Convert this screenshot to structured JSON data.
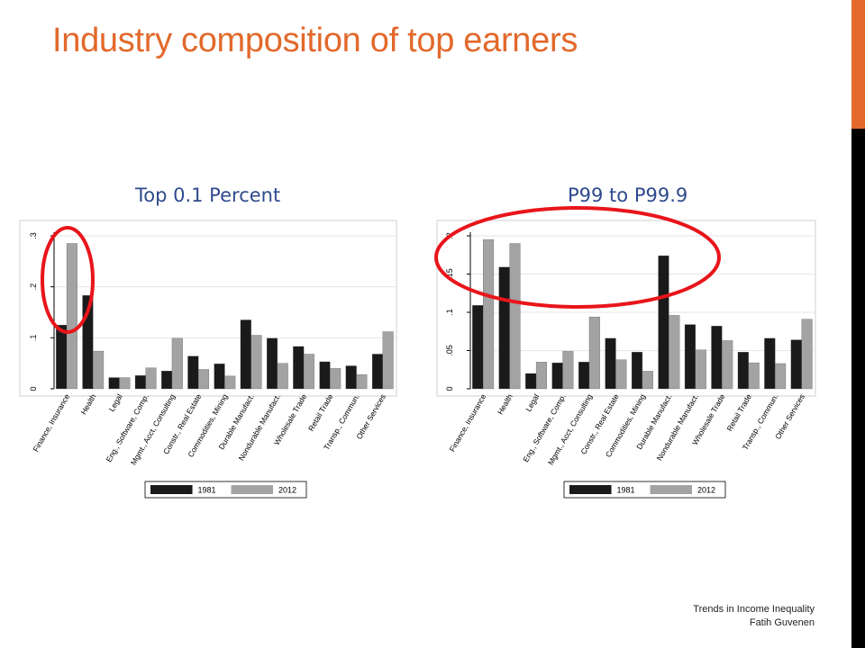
{
  "slide": {
    "title": "Industry composition of top earners",
    "footer_line1": "Trends in Income Inequality",
    "footer_line2": "Fatih Guvenen"
  },
  "colors": {
    "title": "#E2692B",
    "panel_title": "#2E4A8C",
    "accent_bar": "#E2692B",
    "dark_bar": "#000000",
    "series_1981": "#1a1a1a",
    "series_2012": "#a3a3a3",
    "highlight_circle": "#E8151B",
    "plot_bg": "#ffffff",
    "grid": "#e6e6e6"
  },
  "chart_data": [
    {
      "type": "bar",
      "title": "Top 0.1 Percent",
      "categories": [
        "Finance, Insurance",
        "Health",
        "Legal",
        "Eng., Software, Comp.",
        "Mgmt., Acct, Consulting",
        "Constr., Real Estate",
        "Commodities, Mining",
        "Durable Manufact.",
        "Nondurable Manufact.",
        "Wholesale Trade",
        "Retail Trade",
        "Transp., Commun.",
        "Other Services"
      ],
      "series": [
        {
          "name": "1981",
          "values": [
            0.125,
            0.183,
            0.022,
            0.026,
            0.035,
            0.064,
            0.049,
            0.135,
            0.099,
            0.083,
            0.053,
            0.045,
            0.068
          ]
        },
        {
          "name": "2012",
          "values": [
            0.285,
            0.074,
            0.022,
            0.041,
            0.099,
            0.038,
            0.025,
            0.105,
            0.05,
            0.068,
            0.04,
            0.028,
            0.112
          ]
        }
      ],
      "ylim": [
        0,
        0.3
      ],
      "yticks": [
        0,
        0.1,
        0.2,
        0.3
      ],
      "ytick_labels": [
        "0",
        ".1",
        ".2",
        ".3"
      ],
      "grid": true,
      "legend_position": "bottom",
      "highlight": {
        "shape": "ellipse",
        "category_index": 0
      }
    },
    {
      "type": "bar",
      "title": "P99 to P99.9",
      "categories": [
        "Finance, Insurance",
        "Health",
        "Legal",
        "Eng., Software, Comp.",
        "Mgmt., Acct, Consulting",
        "Constr., Real Estate",
        "Commodities, Mining",
        "Durable Manufact.",
        "Nondurable Manufact.",
        "Wholesale Trade",
        "Retail Trade",
        "Transp., Commun.",
        "Other Services"
      ],
      "series": [
        {
          "name": "1981",
          "values": [
            0.109,
            0.159,
            0.02,
            0.034,
            0.035,
            0.066,
            0.048,
            0.174,
            0.084,
            0.082,
            0.048,
            0.066,
            0.064
          ]
        },
        {
          "name": "2012",
          "values": [
            0.195,
            0.19,
            0.035,
            0.049,
            0.094,
            0.038,
            0.023,
            0.096,
            0.051,
            0.063,
            0.034,
            0.033,
            0.091
          ]
        }
      ],
      "ylim": [
        0,
        0.2
      ],
      "yticks": [
        0,
        0.05,
        0.1,
        0.15,
        0.2
      ],
      "ytick_labels": [
        "0",
        ".05",
        ".1",
        ".15",
        ".2"
      ],
      "grid": true,
      "legend_position": "bottom",
      "highlight": {
        "shape": "ellipse",
        "category_range": [
          0,
          7
        ]
      }
    }
  ]
}
